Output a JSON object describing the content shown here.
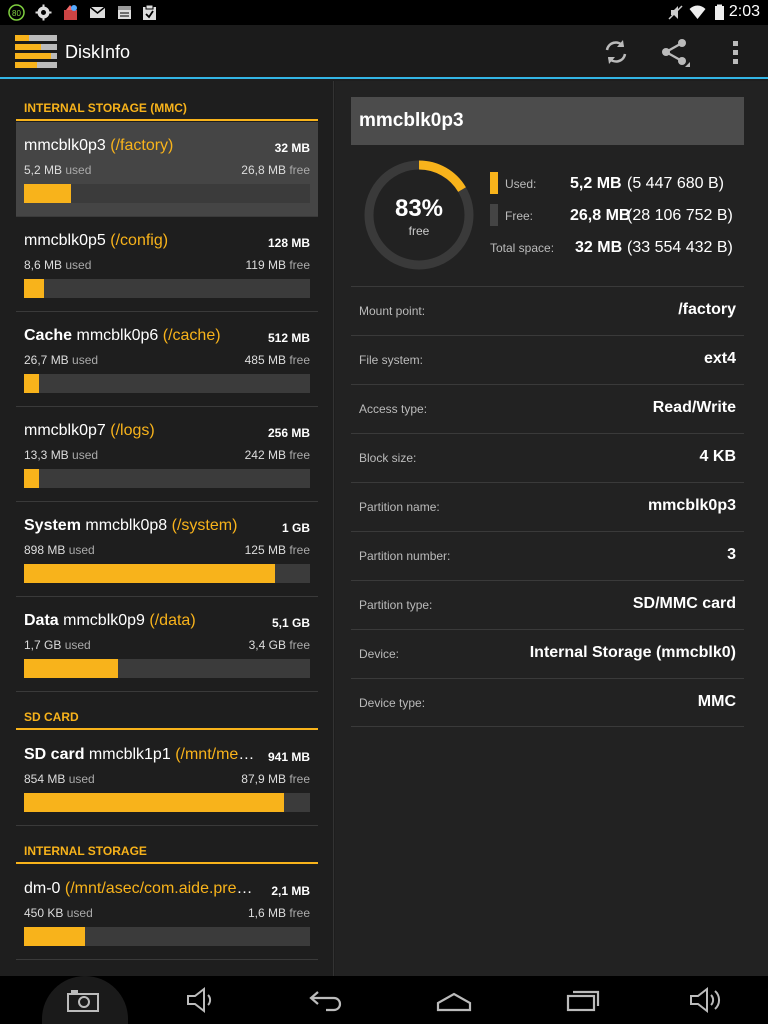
{
  "status_bar": {
    "time": "2:03",
    "notification_badge": "80",
    "icons_left": [
      "badge-80-icon",
      "settings-icon",
      "app-icon",
      "gmail-icon",
      "calendar-icon",
      "clipboard-icon"
    ],
    "icons_right": [
      "mute-icon",
      "wifi-icon",
      "battery-icon"
    ]
  },
  "action_bar": {
    "title": "DiskInfo",
    "actions": [
      "refresh-icon",
      "share-icon",
      "overflow-menu-icon"
    ]
  },
  "sections": [
    {
      "header": "INTERNAL STORAGE (MMC)",
      "partitions": [
        {
          "prefix": "",
          "device": "mmcblk0p3",
          "mount": "(/factory)",
          "total": "32 MB",
          "used": "5,2 MB",
          "used_suffix": "used",
          "free": "26,8 MB",
          "free_suffix": "free",
          "used_fraction": 0.165,
          "selected": true
        },
        {
          "prefix": "",
          "device": "mmcblk0p5",
          "mount": "(/config)",
          "total": "128 MB",
          "used": "8,6 MB",
          "used_suffix": "used",
          "free": "119 MB",
          "free_suffix": "free",
          "used_fraction": 0.07
        },
        {
          "prefix": "Cache",
          "device": "mmcblk0p6",
          "mount": "(/cache)",
          "total": "512 MB",
          "used": "26,7 MB",
          "used_suffix": "used",
          "free": "485 MB",
          "free_suffix": "free",
          "used_fraction": 0.052
        },
        {
          "prefix": "",
          "device": "mmcblk0p7",
          "mount": "(/logs)",
          "total": "256 MB",
          "used": "13,3 MB",
          "used_suffix": "used",
          "free": "242 MB",
          "free_suffix": "free",
          "used_fraction": 0.052
        },
        {
          "prefix": "System",
          "device": "mmcblk0p8",
          "mount": "(/system)",
          "total": "1 GB",
          "used": "898 MB",
          "used_suffix": "used",
          "free": "125 MB",
          "free_suffix": "free",
          "used_fraction": 0.877
        },
        {
          "prefix": "Data",
          "device": "mmcblk0p9",
          "mount": "(/data)",
          "total": "5,1 GB",
          "used": "1,7 GB",
          "used_suffix": "used",
          "free": "3,4 GB",
          "free_suffix": "free",
          "used_fraction": 0.33
        }
      ]
    },
    {
      "header": "SD CARD",
      "partitions": [
        {
          "prefix": "SD card",
          "device": "mmcblk1p1",
          "mount": "(/mnt/media...",
          "total": "941 MB",
          "used": "854 MB",
          "used_suffix": "used",
          "free": "87,9 MB",
          "free_suffix": "free",
          "used_fraction": 0.908
        }
      ]
    },
    {
      "header": "INTERNAL STORAGE",
      "partitions": [
        {
          "prefix": "",
          "device": "dm-0",
          "mount": "(/mnt/asec/com.aide.premi...",
          "total": "2,1 MB",
          "used": "450 KB",
          "used_suffix": "used",
          "free": "1,6 MB",
          "free_suffix": "free",
          "used_fraction": 0.214
        }
      ]
    }
  ],
  "detail": {
    "title": "mmcblk0p3",
    "free_percent_label": "83%",
    "free_label": "free",
    "used_fraction": 0.165,
    "legend": {
      "used_label": "Used:",
      "used_value": "5,2 MB",
      "used_bytes": "(5 447 680 B)",
      "free_label": "Free:",
      "free_value": "26,8 MB",
      "free_bytes": "(28 106 752 B)",
      "total_label": "Total space:",
      "total_value": "32 MB",
      "total_bytes": "(33 554 432 B)"
    },
    "properties": [
      {
        "label": "Mount point:",
        "value": "/factory"
      },
      {
        "label": "File system:",
        "value": "ext4"
      },
      {
        "label": "Access type:",
        "value": "Read/Write"
      },
      {
        "label": "Block size:",
        "value": "4 KB"
      },
      {
        "label": "Partition name:",
        "value": "mmcblk0p3"
      },
      {
        "label": "Partition number:",
        "value": "3"
      },
      {
        "label": "Partition type:",
        "value": "SD/MMC card"
      },
      {
        "label": "Device:",
        "value": "Internal Storage (mmcblk0)"
      },
      {
        "label": "Device type:",
        "value": "MMC"
      }
    ]
  },
  "nav_bar": [
    "screenshot-icon",
    "volume-down-icon",
    "back-icon",
    "home-icon",
    "recents-icon",
    "volume-up-icon"
  ],
  "colors": {
    "accent": "#f8b31b",
    "holo_blue": "#33b5e5",
    "selected_bg": "#454545",
    "bar_bg": "#3b3b3b"
  }
}
